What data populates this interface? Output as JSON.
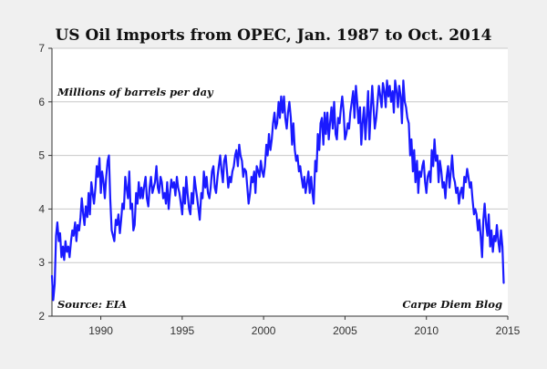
{
  "chart_data": {
    "type": "line",
    "title": "US Oil Imports from OPEC, Jan. 1987 to Oct. 2014",
    "ylabel": "Millions of barrels per day",
    "xlabel": "",
    "source": "Source: EIA",
    "credit": "Carpe Diem Blog",
    "xlim": [
      1987,
      2015
    ],
    "ylim": [
      2,
      7
    ],
    "x_ticks": [
      1990,
      1995,
      2000,
      2005,
      2010,
      2015
    ],
    "x_tick_labels": [
      "1990",
      "1995",
      "2000",
      "2005",
      "2010",
      "2015"
    ],
    "y_ticks": [
      2,
      3,
      4,
      5,
      6,
      7
    ],
    "y_tick_labels": [
      "2",
      "3",
      "4",
      "5",
      "6",
      "7"
    ],
    "grid": "horizontal",
    "line_color": "#1a1aff",
    "series": [
      {
        "x": [
          1987.0,
          1987.08,
          1987.17,
          1987.25,
          1987.33,
          1987.42,
          1987.5,
          1987.58,
          1987.67,
          1987.75,
          1987.83,
          1987.92,
          1988.0,
          1988.08,
          1988.17,
          1988.25,
          1988.33,
          1988.42,
          1988.5,
          1988.58,
          1988.67,
          1988.75,
          1988.83,
          1988.92,
          1989.0,
          1989.08,
          1989.17,
          1989.25,
          1989.33,
          1989.42,
          1989.5,
          1989.58,
          1989.67,
          1989.75,
          1989.83,
          1989.92,
          1990.0,
          1990.08,
          1990.17,
          1990.25,
          1990.33,
          1990.42,
          1990.5,
          1990.58,
          1990.67,
          1990.75,
          1990.83,
          1990.92,
          1991.0,
          1991.08,
          1991.17,
          1991.25,
          1991.33,
          1991.42,
          1991.5,
          1991.58,
          1991.67,
          1991.75,
          1991.83,
          1991.92,
          1992.0,
          1992.08,
          1992.17,
          1992.25,
          1992.33,
          1992.42,
          1992.5,
          1992.58,
          1992.67,
          1992.75,
          1992.83,
          1992.92,
          1993.0,
          1993.08,
          1993.17,
          1993.25,
          1993.33,
          1993.42,
          1993.5,
          1993.58,
          1993.67,
          1993.75,
          1993.83,
          1993.92,
          1994.0,
          1994.08,
          1994.17,
          1994.25,
          1994.33,
          1994.42,
          1994.5,
          1994.58,
          1994.67,
          1994.75,
          1994.83,
          1994.92,
          1995.0,
          1995.08,
          1995.17,
          1995.25,
          1995.33,
          1995.42,
          1995.5,
          1995.58,
          1995.67,
          1995.75,
          1995.83,
          1995.92,
          1996.0,
          1996.08,
          1996.17,
          1996.25,
          1996.33,
          1996.42,
          1996.5,
          1996.58,
          1996.67,
          1996.75,
          1996.83,
          1996.92,
          1997.0,
          1997.08,
          1997.17,
          1997.25,
          1997.33,
          1997.42,
          1997.5,
          1997.58,
          1997.67,
          1997.75,
          1997.83,
          1997.92,
          1998.0,
          1998.08,
          1998.17,
          1998.25,
          1998.33,
          1998.42,
          1998.5,
          1998.58,
          1998.67,
          1998.75,
          1998.83,
          1998.92,
          1999.0,
          1999.08,
          1999.17,
          1999.25,
          1999.33,
          1999.42,
          1999.5,
          1999.58,
          1999.67,
          1999.75,
          1999.83,
          1999.92,
          2000.0,
          2000.08,
          2000.17,
          2000.25,
          2000.33,
          2000.42,
          2000.5,
          2000.58,
          2000.67,
          2000.75,
          2000.83,
          2000.92,
          2001.0,
          2001.08,
          2001.17,
          2001.25,
          2001.33,
          2001.42,
          2001.5,
          2001.58,
          2001.67,
          2001.75,
          2001.83,
          2001.92,
          2002.0,
          2002.08,
          2002.17,
          2002.25,
          2002.33,
          2002.42,
          2002.5,
          2002.58,
          2002.67,
          2002.75,
          2002.83,
          2002.92,
          2003.0,
          2003.08,
          2003.17,
          2003.25,
          2003.33,
          2003.42,
          2003.5,
          2003.58,
          2003.67,
          2003.75,
          2003.83,
          2003.92,
          2004.0,
          2004.08,
          2004.17,
          2004.25,
          2004.33,
          2004.42,
          2004.5,
          2004.58,
          2004.67,
          2004.75,
          2004.83,
          2004.92,
          2005.0,
          2005.08,
          2005.17,
          2005.25,
          2005.33,
          2005.42,
          2005.5,
          2005.58,
          2005.67,
          2005.75,
          2005.83,
          2005.92,
          2006.0,
          2006.08,
          2006.17,
          2006.25,
          2006.33,
          2006.42,
          2006.5,
          2006.58,
          2006.67,
          2006.75,
          2006.83,
          2006.92,
          2007.0,
          2007.08,
          2007.17,
          2007.25,
          2007.33,
          2007.42,
          2007.5,
          2007.58,
          2007.67,
          2007.75,
          2007.83,
          2007.92,
          2008.0,
          2008.08,
          2008.17,
          2008.25,
          2008.33,
          2008.42,
          2008.5,
          2008.58,
          2008.67,
          2008.75,
          2008.83,
          2008.92,
          2009.0,
          2009.08,
          2009.17,
          2009.25,
          2009.33,
          2009.42,
          2009.5,
          2009.58,
          2009.67,
          2009.75,
          2009.83,
          2009.92,
          2010.0,
          2010.08,
          2010.17,
          2010.25,
          2010.33,
          2010.42,
          2010.5,
          2010.58,
          2010.67,
          2010.75,
          2010.83,
          2010.92,
          2011.0,
          2011.08,
          2011.17,
          2011.25,
          2011.33,
          2011.42,
          2011.5,
          2011.58,
          2011.67,
          2011.75,
          2011.83,
          2011.92,
          2012.0,
          2012.08,
          2012.17,
          2012.25,
          2012.33,
          2012.42,
          2012.5,
          2012.58,
          2012.67,
          2012.75,
          2012.83,
          2012.92,
          2013.0,
          2013.08,
          2013.17,
          2013.25,
          2013.33,
          2013.42,
          2013.5,
          2013.58,
          2013.67,
          2013.75,
          2013.83,
          2013.92,
          2014.0,
          2014.08,
          2014.17,
          2014.25,
          2014.33,
          2014.42,
          2014.5,
          2014.58,
          2014.67,
          2014.75
        ],
        "y": [
          2.75,
          2.3,
          2.6,
          3.5,
          3.75,
          3.4,
          3.55,
          3.1,
          3.3,
          3.05,
          3.4,
          3.2,
          3.3,
          3.1,
          3.4,
          3.6,
          3.5,
          3.75,
          3.4,
          3.7,
          3.6,
          3.85,
          4.2,
          3.9,
          3.7,
          4.05,
          3.85,
          4.3,
          3.9,
          4.5,
          4.3,
          4.1,
          4.4,
          4.8,
          4.6,
          4.95,
          4.3,
          4.7,
          4.5,
          4.2,
          4.6,
          4.9,
          5.0,
          4.2,
          3.6,
          3.5,
          3.4,
          3.8,
          3.7,
          3.9,
          3.55,
          3.8,
          4.1,
          4.0,
          4.6,
          4.4,
          4.2,
          4.7,
          4.0,
          4.1,
          3.6,
          3.7,
          4.3,
          4.1,
          4.5,
          4.2,
          4.4,
          4.2,
          4.45,
          4.6,
          4.2,
          4.05,
          4.4,
          4.6,
          4.3,
          4.4,
          4.5,
          4.8,
          4.4,
          4.3,
          4.6,
          4.5,
          4.2,
          4.3,
          4.1,
          4.5,
          4.0,
          4.3,
          4.55,
          4.4,
          4.5,
          4.25,
          4.6,
          4.4,
          4.3,
          4.1,
          3.9,
          4.4,
          4.1,
          4.6,
          4.3,
          4.0,
          3.9,
          4.3,
          4.1,
          4.6,
          4.4,
          4.2,
          4.0,
          3.8,
          4.3,
          4.2,
          4.7,
          4.4,
          4.6,
          4.3,
          4.2,
          4.4,
          4.7,
          4.8,
          4.4,
          4.3,
          4.6,
          4.8,
          5.0,
          4.7,
          4.5,
          4.9,
          5.0,
          4.7,
          4.4,
          4.6,
          4.5,
          4.7,
          4.8,
          5.0,
          5.1,
          4.8,
          5.2,
          5.0,
          4.9,
          4.6,
          4.75,
          4.7,
          4.4,
          4.1,
          4.3,
          4.6,
          4.5,
          4.7,
          4.3,
          4.8,
          4.7,
          4.6,
          4.9,
          4.7,
          4.6,
          4.8,
          5.2,
          5.0,
          5.4,
          5.1,
          5.3,
          5.6,
          5.8,
          5.5,
          5.6,
          6.0,
          5.7,
          6.1,
          5.8,
          6.1,
          5.7,
          5.5,
          5.8,
          6.0,
          5.7,
          5.2,
          5.6,
          5.1,
          4.9,
          5.0,
          4.7,
          4.8,
          4.6,
          4.4,
          4.6,
          4.3,
          4.5,
          4.7,
          4.3,
          4.6,
          4.3,
          4.1,
          4.9,
          4.7,
          5.4,
          5.1,
          5.6,
          5.7,
          5.2,
          5.8,
          5.4,
          5.8,
          5.3,
          5.6,
          5.9,
          5.5,
          6.0,
          5.4,
          5.3,
          5.7,
          5.6,
          5.9,
          6.1,
          5.8,
          5.3,
          5.4,
          5.6,
          5.5,
          5.8,
          6.0,
          6.2,
          5.7,
          6.3,
          6.0,
          5.6,
          5.9,
          5.2,
          5.6,
          5.9,
          5.3,
          5.7,
          6.2,
          5.3,
          5.8,
          6.3,
          5.9,
          5.5,
          5.7,
          6.0,
          6.3,
          6.1,
          5.9,
          6.35,
          6.2,
          5.9,
          6.4,
          6.1,
          6.3,
          6.0,
          6.2,
          5.8,
          6.4,
          6.2,
          5.9,
          6.3,
          6.1,
          5.6,
          6.4,
          6.0,
          5.9,
          5.7,
          5.6,
          5.0,
          5.3,
          4.7,
          5.1,
          4.5,
          4.9,
          4.3,
          4.7,
          4.6,
          4.8,
          4.9,
          4.5,
          4.3,
          4.6,
          4.7,
          4.5,
          5.1,
          4.8,
          5.3,
          4.9,
          5.0,
          4.5,
          4.9,
          4.7,
          4.4,
          4.5,
          4.2,
          4.6,
          4.8,
          4.4,
          4.7,
          5.0,
          4.6,
          4.5,
          4.3,
          4.4,
          4.1,
          4.3,
          4.4,
          4.2,
          4.6,
          4.5,
          4.75,
          4.6,
          4.4,
          4.5,
          4.2,
          3.9,
          4.0,
          3.9,
          3.6,
          3.8,
          3.5,
          3.1,
          3.8,
          4.1,
          3.7,
          3.5,
          3.9,
          3.3,
          3.6,
          3.2,
          3.5,
          3.4,
          3.7,
          3.4,
          3.2,
          3.6,
          3.3,
          2.62
        ]
      }
    ]
  }
}
